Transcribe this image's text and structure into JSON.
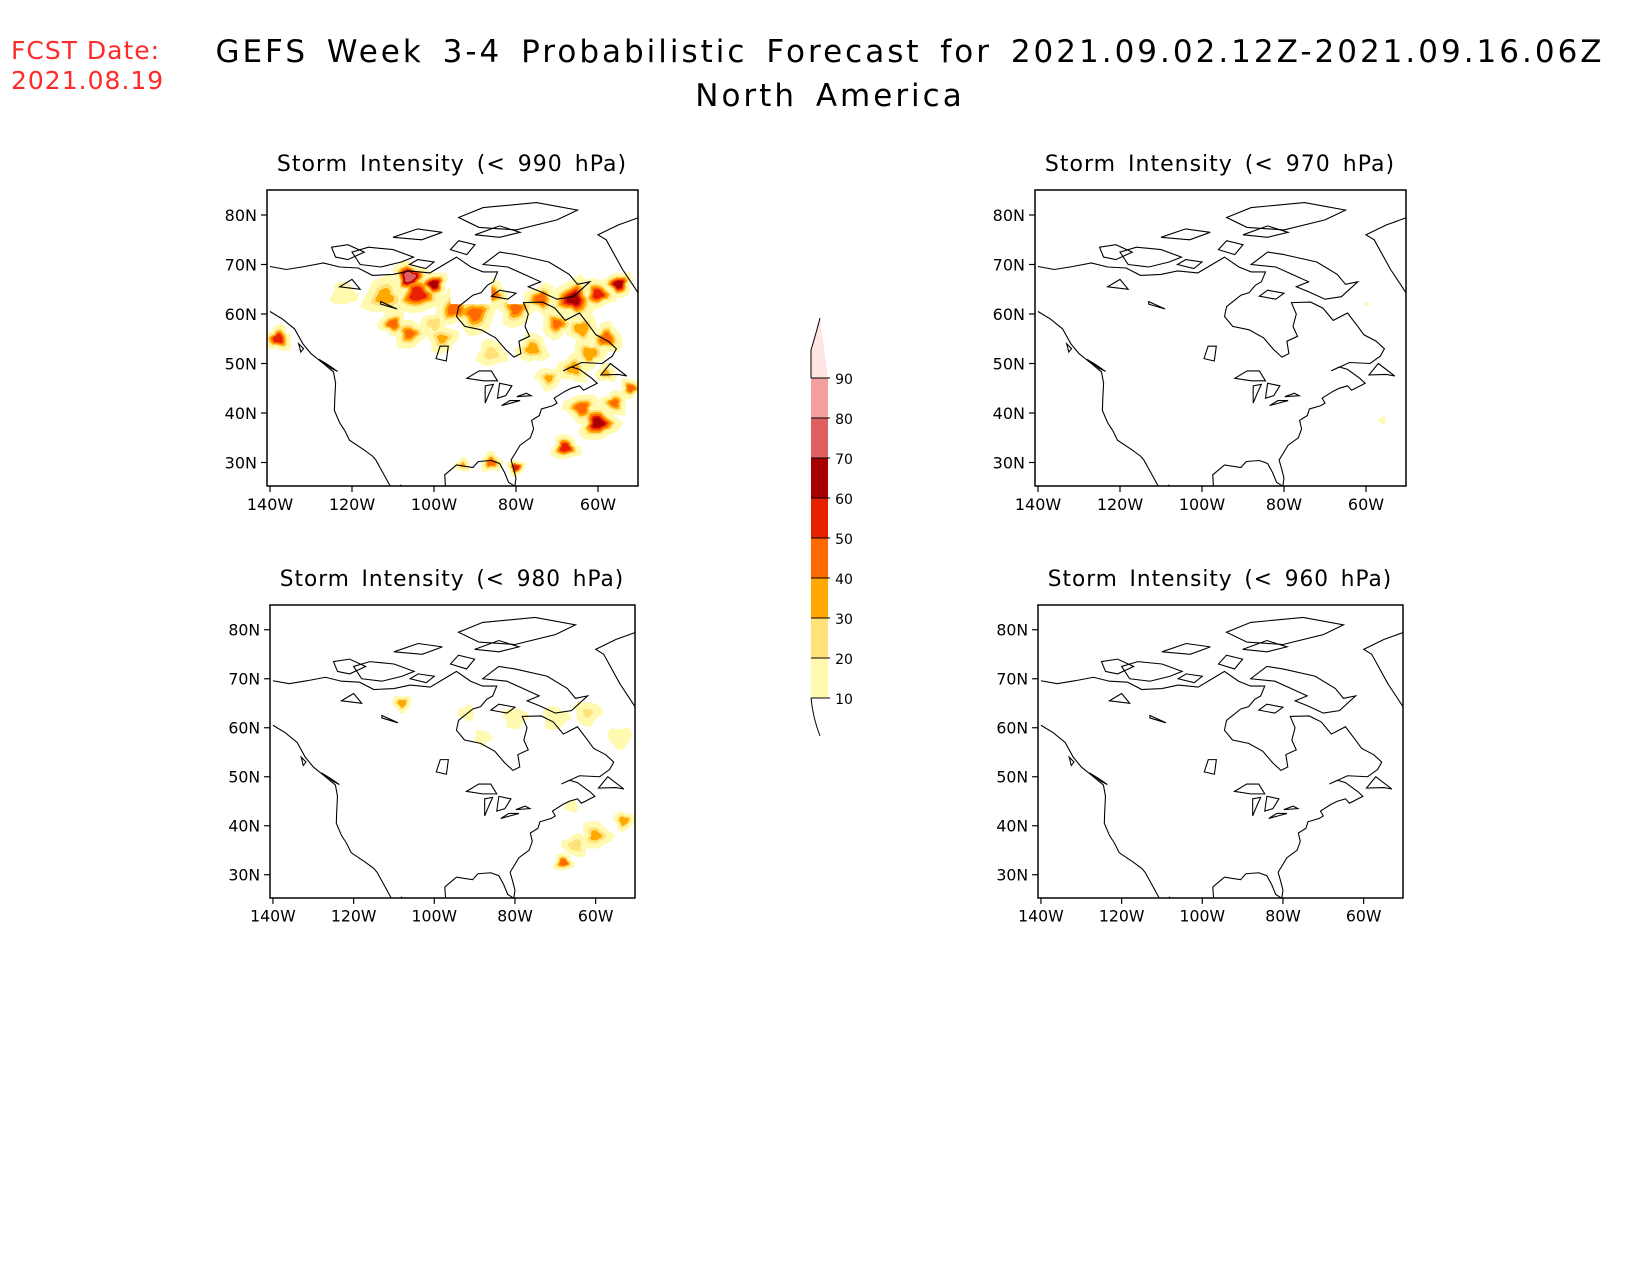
{
  "header": {
    "fcst_label": "FCST Date:",
    "fcst_date": "2021.08.19",
    "title_line1": "GEFS Week 3-4 Probabilistic Forecast for 2021.09.02.12Z-2021.09.16.06Z",
    "title_line2": "North America"
  },
  "panels": [
    {
      "id": "p990",
      "title": "Storm Intensity (< 990 hPa)"
    },
    {
      "id": "p970",
      "title": "Storm Intensity (< 970 hPa)"
    },
    {
      "id": "p980",
      "title": "Storm Intensity (< 980 hPa)"
    },
    {
      "id": "p960",
      "title": "Storm Intensity (< 960 hPa)"
    }
  ],
  "axes": {
    "lat_ticks": [
      "80N",
      "70N",
      "60N",
      "50N",
      "40N",
      "30N"
    ],
    "lon_ticks": [
      "140W",
      "120W",
      "100W",
      "80W",
      "60W"
    ]
  },
  "colorbar": {
    "levels": [
      10,
      20,
      30,
      40,
      50,
      60,
      70,
      80,
      90
    ],
    "labels": [
      "10",
      "20",
      "30",
      "40",
      "50",
      "60",
      "70",
      "80",
      "90"
    ],
    "colors": [
      "#fffab0",
      "#ffe27a",
      "#ffa800",
      "#ff6a00",
      "#e82000",
      "#a80000",
      "#e06060",
      "#f4a0a0",
      "#ffe4e4"
    ]
  }
}
